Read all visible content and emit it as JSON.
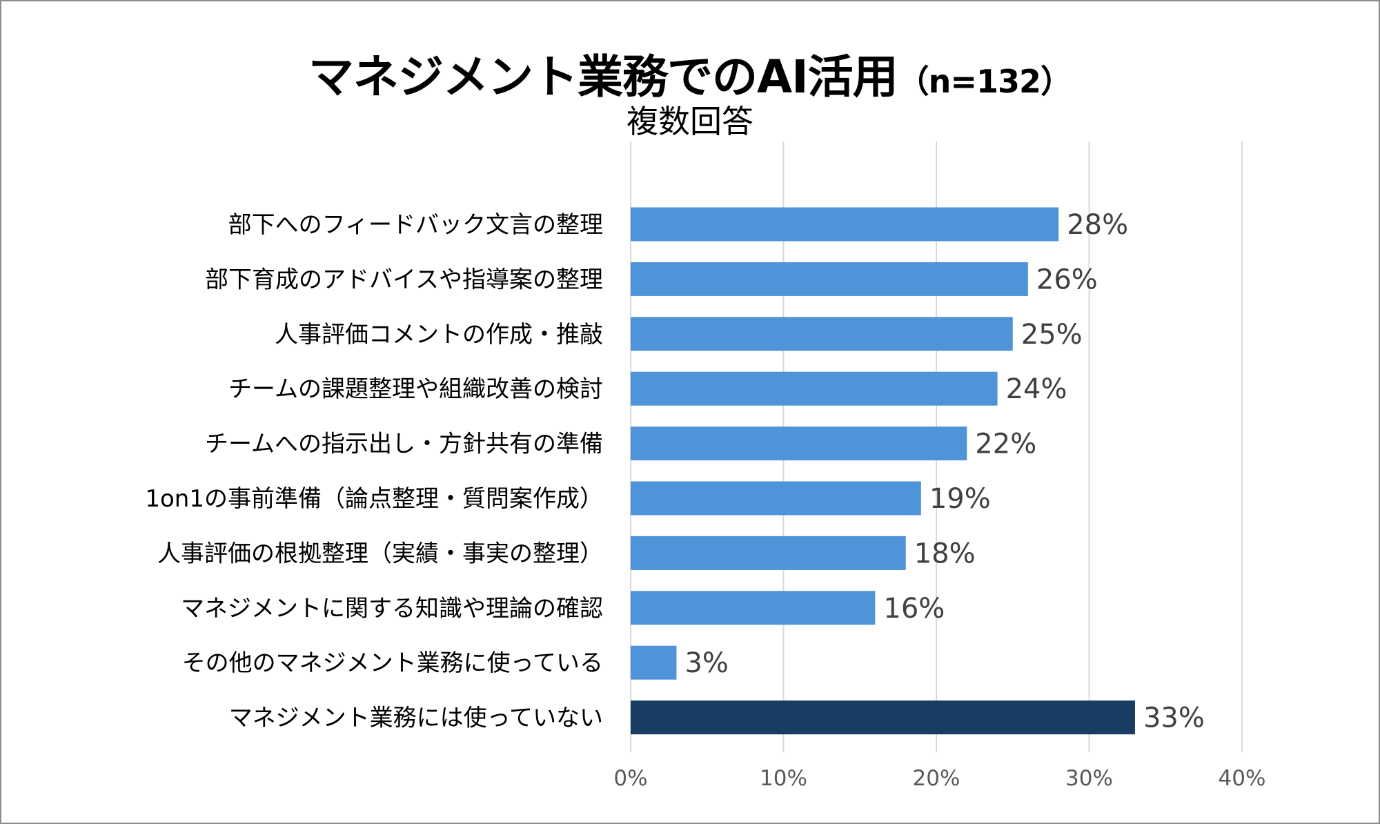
{
  "chart_data": {
    "type": "bar",
    "orientation": "horizontal",
    "title": "マネジメント業務でのAI活用",
    "title_suffix": "（n=132）",
    "subtitle": "複数回答",
    "categories": [
      "部下へのフィードバック文言の整理",
      "部下育成のアドバイスや指導案の整理",
      "人事評価コメントの作成・推敲",
      "チームの課題整理や組織改善の検討",
      "チームへの指示出し・方針共有の準備",
      "1on1の事前準備（論点整理・質問案作成）",
      "人事評価の根拠整理（実績・事実の整理）",
      "マネジメントに関する知識や理論の確認",
      "その他のマネジメント業務に使っている",
      "マネジメント業務には使っていない"
    ],
    "values": [
      28,
      26,
      25,
      24,
      22,
      19,
      18,
      16,
      3,
      33
    ],
    "value_labels": [
      "28%",
      "26%",
      "25%",
      "24%",
      "22%",
      "19%",
      "18%",
      "16%",
      "3%",
      "33%"
    ],
    "highlight": [
      false,
      false,
      false,
      false,
      false,
      false,
      false,
      false,
      false,
      true
    ],
    "xlim": [
      0,
      40
    ],
    "xticks": [
      0,
      10,
      20,
      30,
      40
    ],
    "xtick_labels": [
      "0%",
      "10%",
      "20%",
      "30%",
      "40%"
    ],
    "xlabel": "",
    "ylabel": "",
    "grid": true,
    "colors": {
      "bar": "#4f94d8",
      "highlight_bar": "#183c62",
      "grid": "#d9d9d9",
      "value_text": "#404040",
      "tick_text": "#595959"
    }
  }
}
